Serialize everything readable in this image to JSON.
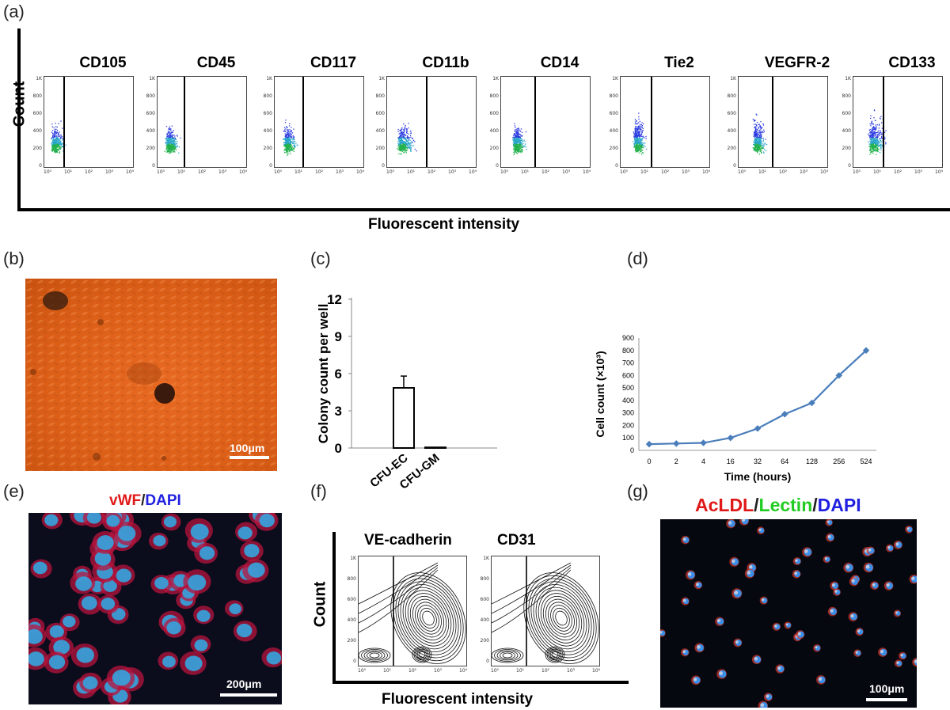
{
  "panels": {
    "a": "(a)",
    "b": "(b)",
    "c": "(c)",
    "d": "(d)",
    "e": "(e)",
    "f": "(f)",
    "g": "(g)"
  },
  "panel_a": {
    "y_label": "Count",
    "x_label": "Fluorescent intensity",
    "markers": [
      "CD105",
      "CD45",
      "CD117",
      "CD11b",
      "CD14",
      "Tie2",
      "VEGFR-2",
      "CD133"
    ],
    "y_ticks": [
      "1K",
      "800",
      "600",
      "400",
      "200",
      "0"
    ],
    "x_ticks": [
      "10⁰",
      "10¹",
      "10²",
      "10³",
      "10⁴"
    ]
  },
  "panel_b": {
    "scale": "100μm",
    "bg_color": "#e0621c"
  },
  "panel_e": {
    "title_red": "vWF",
    "slash": "/",
    "title_blue": "DAPI",
    "scale": "200μm"
  },
  "panel_f": {
    "y_label": "Count",
    "x_label": "Fluorescent intensity",
    "markers": [
      "VE-cadherin",
      "CD31"
    ],
    "y_ticks": [
      "1K",
      "800",
      "600",
      "400",
      "200",
      "0"
    ],
    "x_ticks": [
      "10⁰",
      "10¹",
      "10²",
      "10³",
      "10⁴"
    ]
  },
  "panel_g": {
    "t1": "AcLDL",
    "s1": "/",
    "t2": "Lectin",
    "s2": "/",
    "t3": "DAPI",
    "scale": "100μm"
  },
  "chart_data": [
    {
      "type": "bar",
      "panel": "c",
      "categories": [
        "CFU-EC",
        "CFU-GM"
      ],
      "values": [
        4.85,
        0.05
      ],
      "errors": [
        0.95,
        0
      ],
      "ylabel": "Colony count  per well",
      "yticks": [
        "0",
        "3",
        "6",
        "9",
        "12"
      ],
      "ylim": [
        0,
        12
      ]
    },
    {
      "type": "line",
      "panel": "d",
      "categories": [
        "0",
        "2",
        "4",
        "16",
        "32",
        "64",
        "128",
        "256",
        "524"
      ],
      "values": [
        50,
        55,
        60,
        100,
        175,
        290,
        380,
        600,
        800
      ],
      "ylabel": "Cell count (×10³)",
      "xlabel": "Time (hours)",
      "yticks": [
        "0",
        "100",
        "200",
        "300",
        "400",
        "500",
        "600",
        "700",
        "800",
        "900"
      ],
      "ylim": [
        0,
        900
      ],
      "color": "#4a7ebb"
    }
  ]
}
